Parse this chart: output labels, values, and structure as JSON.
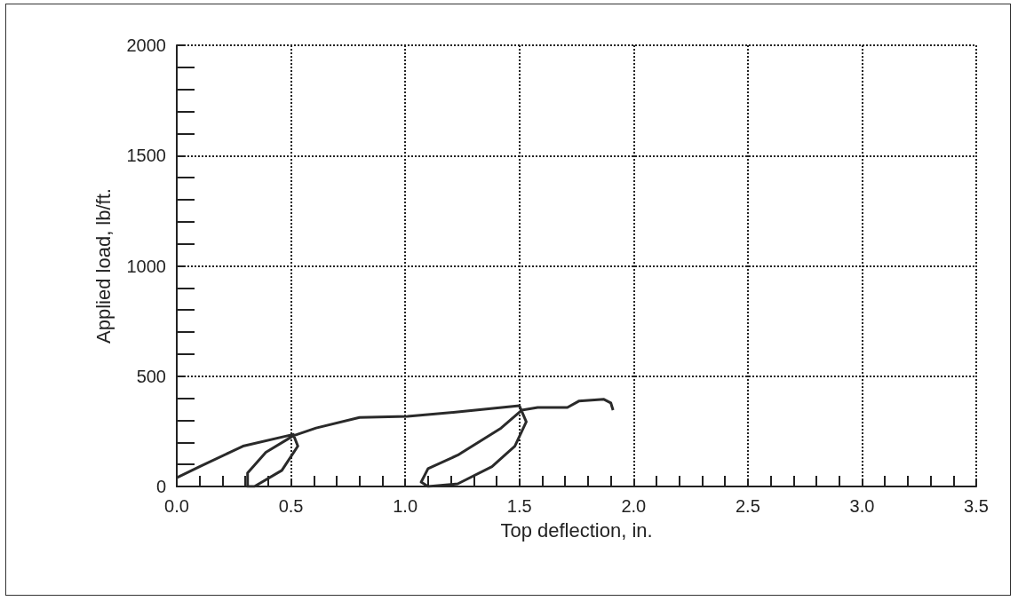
{
  "chart_data": {
    "type": "line",
    "xlabel": "Top deflection, in.",
    "ylabel": "Applied load, lb/ft.",
    "series": [
      {
        "color": "#2a2a2a",
        "x": [
          0,
          0.1,
          0.29,
          0.51,
          0.53,
          0.46,
          0.34,
          0.31,
          0.31,
          0.39,
          0.51,
          0.61,
          0.8,
          1.01,
          1.23,
          1.5,
          1.53,
          1.48,
          1.38,
          1.23,
          1.1,
          1.07,
          1.1,
          1.23,
          1.42,
          1.51,
          1.58,
          1.71,
          1.76,
          1.87,
          1.9,
          1.91
        ],
        "values": [
          40,
          90,
          183,
          236,
          183,
          73,
          0,
          0,
          61,
          155,
          230,
          265,
          313,
          318,
          338,
          366,
          293,
          183,
          90,
          12,
          0,
          20,
          81,
          142,
          265,
          346,
          358,
          358,
          387,
          395,
          379,
          346
        ]
      }
    ],
    "xlim": [
      0,
      3.5
    ],
    "xticks": [
      {
        "value": 0,
        "label": "0.0"
      },
      0.5,
      {
        "value": 1,
        "label": "1.0"
      },
      1.5,
      {
        "value": 2,
        "label": "2.0"
      },
      2.5,
      {
        "value": 3,
        "label": "3.0"
      },
      3.5
    ],
    "ylim": [
      0,
      2000
    ],
    "yticks": [
      0,
      500,
      1000,
      1500,
      2000
    ],
    "grid": true,
    "marker": "none",
    "line_style": "solid"
  }
}
